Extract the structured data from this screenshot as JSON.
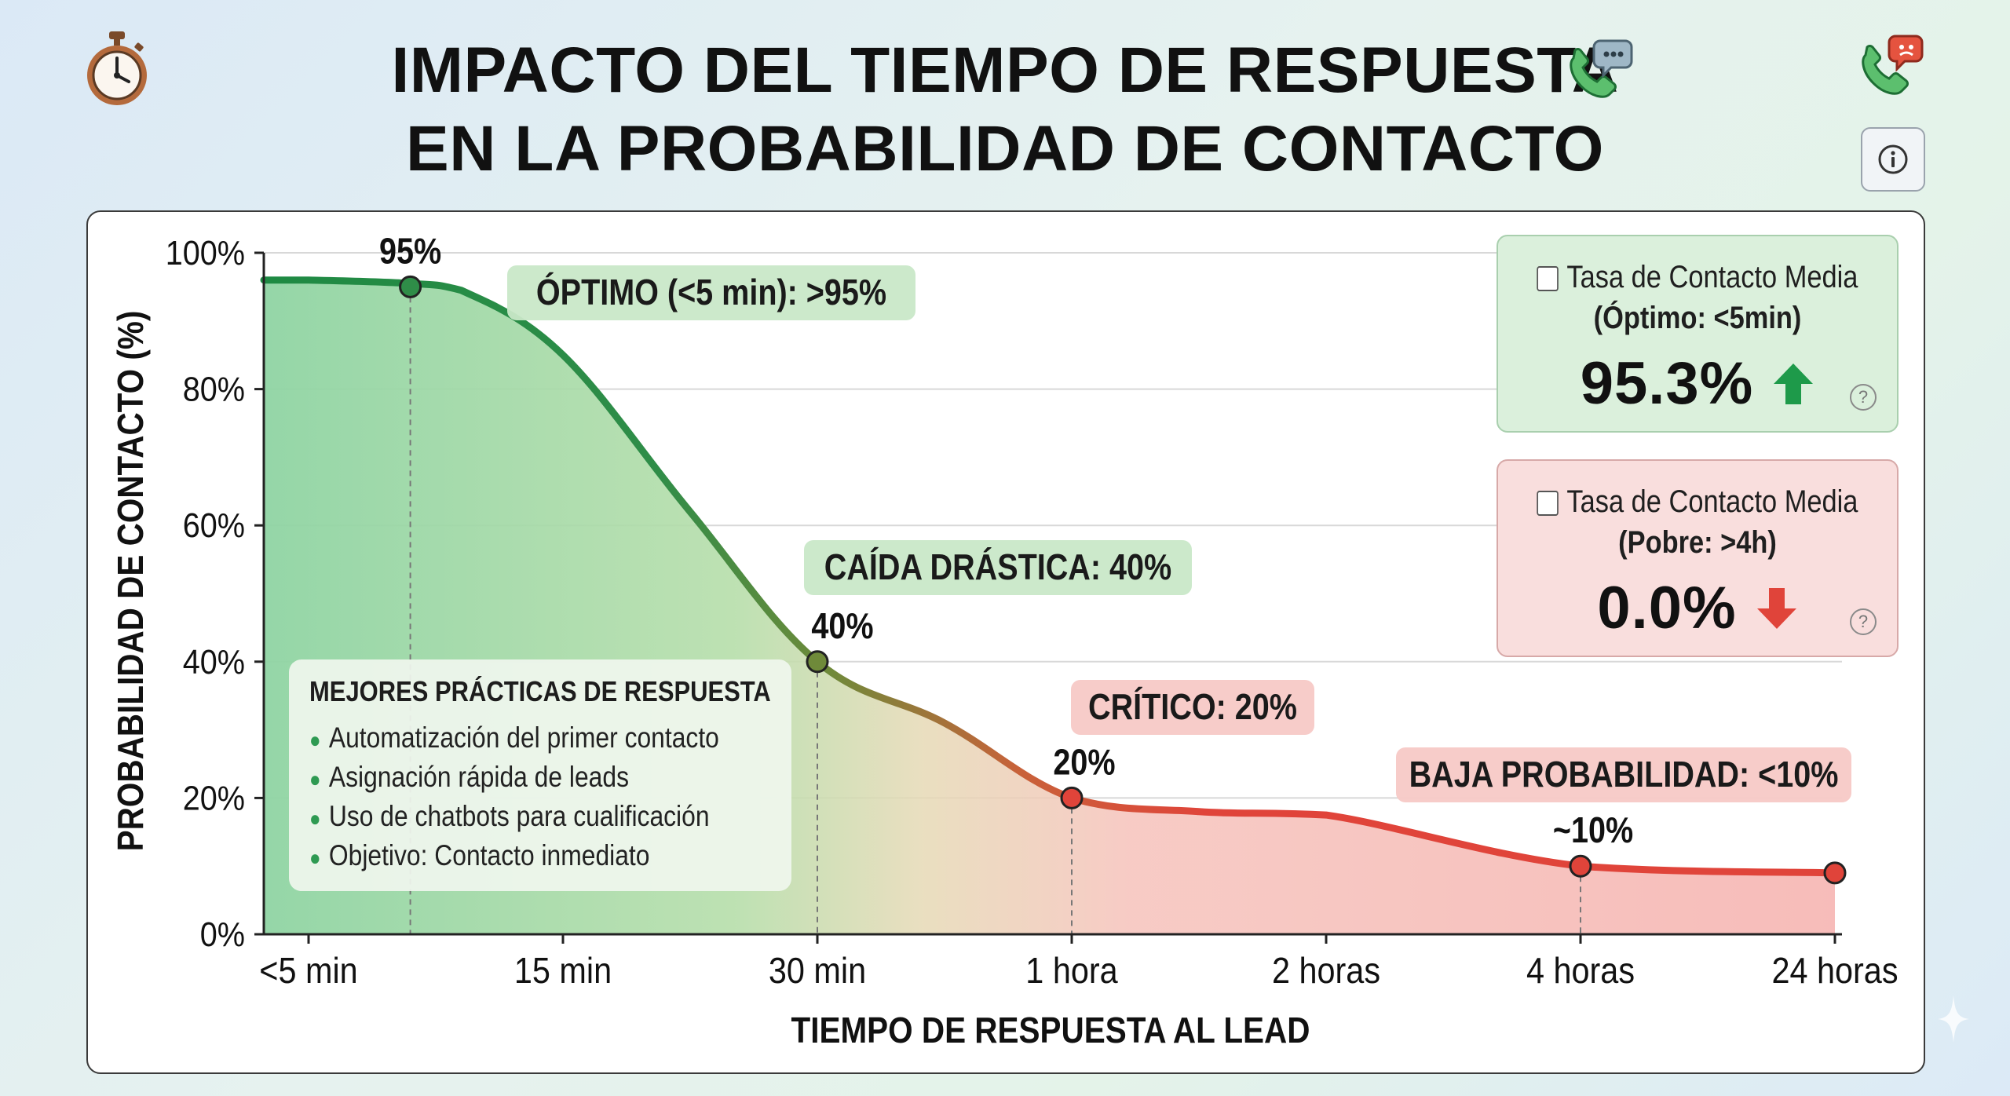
{
  "title": {
    "line1": "IMPACTO DEL TIEMPO DE RESPUESTA",
    "line2": "EN LA PROBABILIDAD DE CONTACTO"
  },
  "icons": {
    "top_left": "stopwatch-icon",
    "title_right": "phone-chat-icon",
    "top_right": "phone-alert-icon",
    "info": "info-icon"
  },
  "colors": {
    "good": "#1e8a43",
    "mid": "#6f8a3a",
    "bad": "#e0443a",
    "good_fill": "#8fd4a3",
    "bad_fill": "#f6b5b2"
  },
  "chart_data": {
    "type": "area",
    "xlabel": "TIEMPO DE RESPUESTA AL LEAD",
    "ylabel": "PROBABILIDAD DE CONTACTO (%)",
    "x_ticks": [
      "<5 min",
      "15 min",
      "30 min",
      "1 hora",
      "2 horas",
      "4 horas",
      "24 horas"
    ],
    "y_ticks": [
      "0%",
      "20%",
      "40%",
      "60%",
      "80%",
      "100%"
    ],
    "ylim": [
      0,
      100
    ],
    "grid": true,
    "series": [
      {
        "x": [
          -0.2,
          0,
          0.4,
          0.6,
          1,
          1.5,
          2,
          2.5,
          3,
          3.5,
          4,
          5,
          6
        ],
        "values": [
          96,
          96,
          95.5,
          94.5,
          85,
          62,
          40,
          31,
          20,
          18,
          17.5,
          10,
          9
        ]
      }
    ],
    "markers": [
      {
        "x": 0.4,
        "y": 95,
        "label": "95%"
      },
      {
        "x": 2,
        "y": 40,
        "label": "40%"
      },
      {
        "x": 3,
        "y": 20,
        "label": "20%"
      },
      {
        "x": 5,
        "y": 10,
        "label": "~10%"
      },
      {
        "x": 6,
        "y": 9,
        "label": ""
      }
    ],
    "callouts": [
      {
        "text": "ÓPTIMO (<5 min): >95%",
        "tone": "good"
      },
      {
        "text": "CAÍDA DRÁSTICA: 40%",
        "tone": "good"
      },
      {
        "text": "CRÍTICO: 20%",
        "tone": "bad"
      },
      {
        "text": "BAJA PROBABILIDAD: <10%",
        "tone": "bad"
      }
    ]
  },
  "practices": {
    "title": "MEJORES PRÁCTICAS DE RESPUESTA",
    "items": [
      "Automatización del primer contacto",
      "Asignación rápida de leads",
      "Uso de chatbots para cualificación",
      "Objetivo: Contacto inmediato"
    ]
  },
  "kpis": {
    "optimal": {
      "label": "Tasa de Contacto Media",
      "sub": "(Óptimo: <5min)",
      "value": "95.3%",
      "trend": "up"
    },
    "poor": {
      "label": "Tasa de Contacto Media",
      "sub": "(Pobre: >4h)",
      "value": "0.0%",
      "trend": "down"
    }
  }
}
